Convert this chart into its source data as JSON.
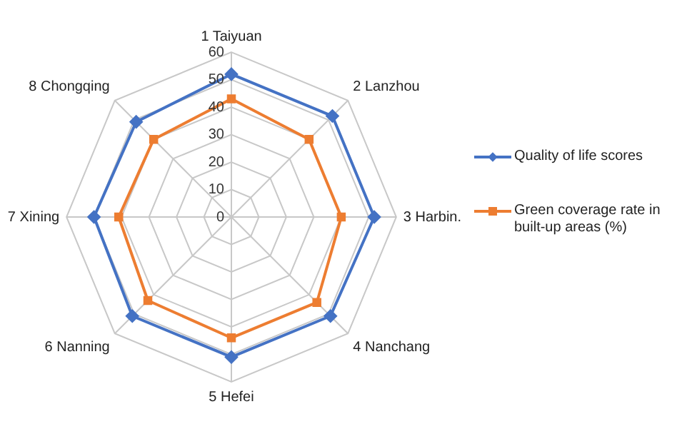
{
  "chart_data": {
    "type": "radar",
    "categories": [
      "1 Taiyuan",
      "2 Lanzhou",
      "3 Harbin.",
      "4 Nanchang",
      "5 Hefei",
      "6 Nanning",
      "7 Xining",
      "8 Chongqing"
    ],
    "series": [
      {
        "name": "Quality of life scores",
        "color": "#4472c4",
        "marker": "diamond",
        "values": [
          52,
          52,
          52,
          51,
          51,
          51,
          50,
          49
        ]
      },
      {
        "name": "Green coverage rate in built-up areas (%)",
        "color": "#ed7d31",
        "marker": "square",
        "values": [
          43,
          40,
          40,
          44,
          44,
          43,
          41,
          40
        ]
      }
    ],
    "ylim": [
      0,
      60
    ],
    "yticks": [
      0,
      10,
      20,
      30,
      40,
      50,
      60
    ],
    "grid": true,
    "legend": "right"
  }
}
